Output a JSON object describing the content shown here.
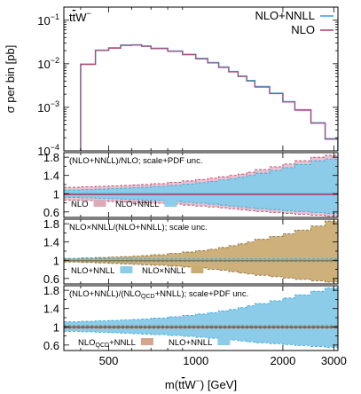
{
  "chart_data": {
    "type": "line",
    "x_scale": "log",
    "xlim": [
      350,
      3100
    ],
    "x_ticks": [
      "500",
      "1000",
      "2000",
      "3000"
    ],
    "xlabel_parts": [
      "m(t",
      "t",
      "W",
      "−",
      ") [GeV]"
    ],
    "bins": [
      350,
      400,
      450,
      500,
      550,
      600,
      650,
      700,
      800,
      900,
      1000,
      1100,
      1200,
      1300,
      1400,
      1500,
      1600,
      1800,
      2000,
      2200,
      2500,
      2800,
      3100
    ],
    "main": {
      "process_label_parts": [
        "t",
        "t",
        "W",
        "−"
      ],
      "ylabel": "σ per bin [pb]",
      "y_scale": "log",
      "ylim": [
        0.0001,
        0.2
      ],
      "y_ticks": [
        {
          "value": 0.0001,
          "base": "10",
          "exp": "−4"
        },
        {
          "value": 0.001,
          "base": "10",
          "exp": "−3"
        },
        {
          "value": 0.01,
          "base": "10",
          "exp": "−2"
        },
        {
          "value": 0.1,
          "base": "10",
          "exp": "−1"
        }
      ],
      "series": [
        {
          "name": "NLO+NNLL",
          "color": "#3ba9d9",
          "values": [
            3e-07,
            0.0098,
            0.0205,
            0.0232,
            0.0268,
            0.0272,
            0.0255,
            0.0226,
            0.0196,
            0.0164,
            0.0132,
            0.0106,
            0.0084,
            0.0066,
            0.0052,
            0.0041,
            0.003,
            0.0021,
            0.00135,
            0.00088,
            0.00044,
            0.00019
          ]
        },
        {
          "name": "NLO",
          "color": "#b8456a",
          "values": [
            3e-07,
            0.0096,
            0.0201,
            0.0228,
            0.0264,
            0.0268,
            0.0251,
            0.0222,
            0.0192,
            0.0161,
            0.0129,
            0.0104,
            0.0082,
            0.0065,
            0.0051,
            0.004,
            0.0029,
            0.00205,
            0.00132,
            0.00086,
            0.00043,
            0.000185
          ]
        }
      ]
    },
    "ratio_y_ticks": [
      "0.6",
      "1",
      "1.4",
      "1.8"
    ],
    "ratio_ylim": [
      0.48,
      1.9
    ],
    "ratio_panels": [
      {
        "title": "(NLO+NNLL)/NLO; scale+PDF unc.",
        "legend": [
          {
            "label": "NLO",
            "color": "#e0a9b8"
          },
          {
            "label": "NLO+NNLL",
            "color": "#8ccce8"
          }
        ],
        "bands": [
          {
            "series": "NLO",
            "fill": "#e8c2cf",
            "edge": "#b8456a",
            "upper": [
              1.14,
              1.15,
              1.16,
              1.17,
              1.18,
              1.19,
              1.2,
              1.22,
              1.25,
              1.28,
              1.31,
              1.34,
              1.37,
              1.4,
              1.43,
              1.47,
              1.53,
              1.59,
              1.65,
              1.72,
              1.8,
              1.84
            ],
            "lower": [
              0.86,
              0.85,
              0.84,
              0.83,
              0.82,
              0.81,
              0.8,
              0.79,
              0.77,
              0.75,
              0.73,
              0.71,
              0.69,
              0.67,
              0.65,
              0.63,
              0.61,
              0.59,
              0.57,
              0.55,
              0.53,
              0.51
            ]
          },
          {
            "series": "NLO+NNLL",
            "fill": "#8ccce8",
            "edge": "#3ba9d9",
            "upper": [
              1.08,
              1.09,
              1.1,
              1.11,
              1.12,
              1.13,
              1.14,
              1.16,
              1.18,
              1.21,
              1.24,
              1.27,
              1.3,
              1.33,
              1.36,
              1.4,
              1.45,
              1.51,
              1.57,
              1.64,
              1.72,
              1.76
            ],
            "lower": [
              0.92,
              0.91,
              0.9,
              0.89,
              0.88,
              0.87,
              0.86,
              0.85,
              0.83,
              0.81,
              0.79,
              0.77,
              0.75,
              0.73,
              0.71,
              0.69,
              0.67,
              0.65,
              0.63,
              0.61,
              0.59,
              0.57
            ]
          }
        ],
        "central": [
          {
            "series": "NLO+NNLL",
            "color": "#3ba9d9",
            "value": 1.0
          },
          {
            "series": "NLO",
            "color": "#b8456a",
            "value": 0.98
          }
        ]
      },
      {
        "title": "NLO×NNLL/(NLO+NNLL); scale unc.",
        "legend": [
          {
            "label": "NLO+NNLL",
            "color": "#8ccce8"
          },
          {
            "label": "NLO×NNLL",
            "color": "#c9ac72"
          }
        ],
        "bands": [
          {
            "series": "NLO×NNLL",
            "fill": "#cdb07a",
            "edge": "#8a7240",
            "upper": [
              1.04,
              1.05,
              1.06,
              1.07,
              1.08,
              1.09,
              1.1,
              1.12,
              1.15,
              1.18,
              1.21,
              1.24,
              1.28,
              1.32,
              1.36,
              1.4,
              1.46,
              1.52,
              1.58,
              1.66,
              1.75,
              1.86
            ],
            "lower": [
              0.96,
              0.95,
              0.94,
              0.93,
              0.92,
              0.91,
              0.9,
              0.89,
              0.87,
              0.85,
              0.83,
              0.8,
              0.78,
              0.75,
              0.72,
              0.7,
              0.67,
              0.64,
              0.61,
              0.58,
              0.55,
              0.52
            ]
          },
          {
            "series": "NLO+NNLL",
            "fill": "#8ccce8",
            "edge": "#3ba9d9",
            "upper": [
              1.03,
              1.03,
              1.03,
              1.03,
              1.03,
              1.03,
              1.03,
              1.03,
              1.03,
              1.03,
              1.03,
              1.03,
              1.03,
              1.03,
              1.03,
              1.03,
              1.03,
              1.03,
              1.03,
              1.03,
              1.03,
              1.03
            ],
            "lower": [
              0.97,
              0.97,
              0.97,
              0.97,
              0.97,
              0.97,
              0.97,
              0.97,
              0.97,
              0.97,
              0.97,
              0.97,
              0.97,
              0.97,
              0.97,
              0.97,
              0.97,
              0.97,
              0.97,
              0.97,
              0.97,
              0.97
            ]
          }
        ],
        "central": [
          {
            "series": "NLO+NNLL",
            "color": "#3ba9d9",
            "value": 1.0
          },
          {
            "series": "NLO×NNLL",
            "color": "#8a7240",
            "value": 0.99
          }
        ]
      },
      {
        "title_parts": [
          "(NLO+NNLL)/(NLO",
          "QCD",
          "+NNLL); scale+PDF unc."
        ],
        "legend": [
          {
            "label_parts": [
              "NLO",
              "QCD",
              "+NNLL"
            ],
            "color": "#d4a58a"
          },
          {
            "label": "NLO+NNLL",
            "color": "#8ccce8"
          }
        ],
        "bands": [
          {
            "series": "NLO+NNLL",
            "fill": "#8ccce8",
            "edge": "#3ba9d9",
            "upper": [
              1.11,
              1.12,
              1.13,
              1.14,
              1.15,
              1.16,
              1.17,
              1.19,
              1.22,
              1.25,
              1.28,
              1.31,
              1.35,
              1.38,
              1.42,
              1.46,
              1.51,
              1.57,
              1.63,
              1.7,
              1.78,
              1.85
            ],
            "lower": [
              0.9,
              0.89,
              0.88,
              0.87,
              0.86,
              0.85,
              0.84,
              0.83,
              0.81,
              0.79,
              0.77,
              0.75,
              0.73,
              0.71,
              0.69,
              0.67,
              0.65,
              0.63,
              0.61,
              0.59,
              0.57,
              0.55
            ]
          },
          {
            "series": "NLO_QCD+NNLL",
            "fill": "#d4a58a",
            "edge": "#8a5a3a",
            "upper": [
              1.02,
              1.02,
              1.02,
              1.02,
              1.02,
              1.02,
              1.02,
              1.02,
              1.02,
              1.02,
              1.02,
              1.02,
              1.02,
              1.02,
              1.02,
              1.02,
              1.02,
              1.02,
              1.02,
              1.02,
              1.02,
              1.02
            ],
            "lower": [
              0.97,
              0.97,
              0.97,
              0.97,
              0.97,
              0.97,
              0.97,
              0.97,
              0.97,
              0.97,
              0.97,
              0.97,
              0.97,
              0.97,
              0.97,
              0.97,
              0.97,
              0.97,
              0.97,
              0.97,
              0.97,
              0.97
            ]
          }
        ],
        "central": [
          {
            "series": "NLO+NNLL",
            "color": "#3ba9d9",
            "value": 1.0
          },
          {
            "series": "NLO_QCD+NNLL",
            "color": "#8a5a3a",
            "value": 0.99
          }
        ]
      }
    ]
  }
}
